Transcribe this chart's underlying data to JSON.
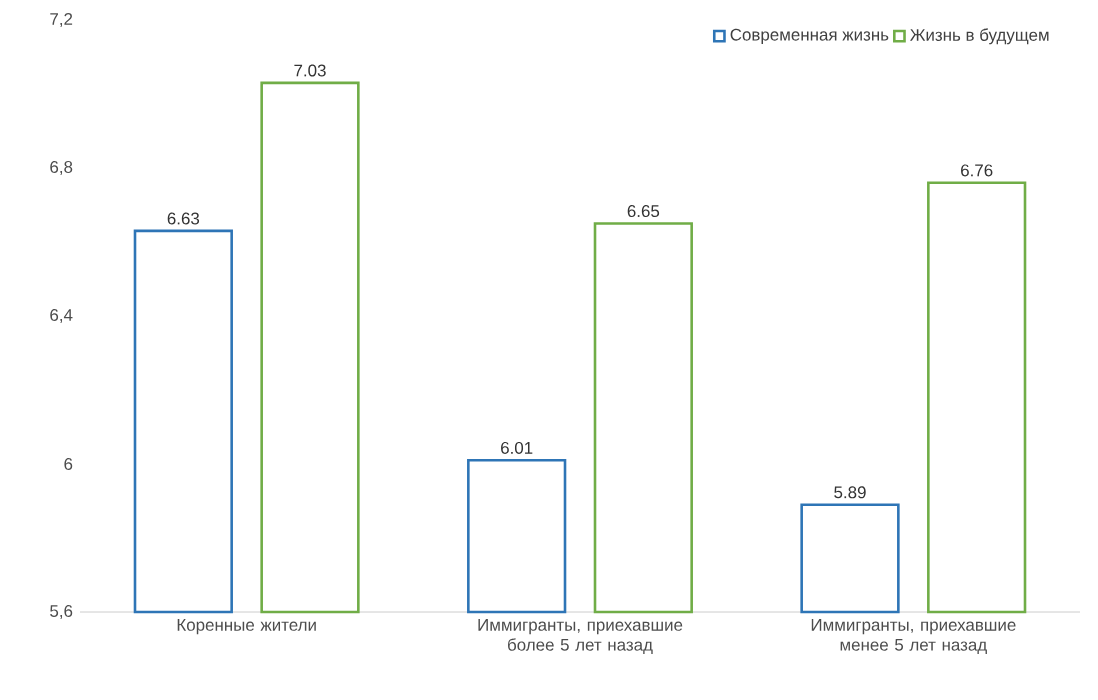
{
  "chart_data": {
    "type": "bar",
    "categories": [
      "Коренные жители",
      "Иммигранты, приехавшие более 5 лет назад",
      "Иммигранты, приехавшие менее 5 лет назад"
    ],
    "series": [
      {
        "name": "Современная жизнь",
        "color": "#2e75b6",
        "values": [
          6.63,
          6.01,
          5.89
        ],
        "value_labels": [
          "6.63",
          "6.01",
          "5.89"
        ]
      },
      {
        "name": "Жизнь в будущем",
        "color": "#70ad47",
        "values": [
          7.03,
          6.65,
          6.76
        ],
        "value_labels": [
          "7.03",
          "6.65",
          "6.76"
        ]
      }
    ],
    "ylim": [
      5.6,
      7.2
    ],
    "yticks": [
      {
        "value": 5.6,
        "label": "5,6"
      },
      6,
      {
        "value": 6.4,
        "label": "6,4"
      },
      {
        "value": 6.8,
        "label": "6,8"
      },
      {
        "value": 7.2,
        "label": "7,2"
      }
    ],
    "legend": "top right",
    "grid": false
  }
}
